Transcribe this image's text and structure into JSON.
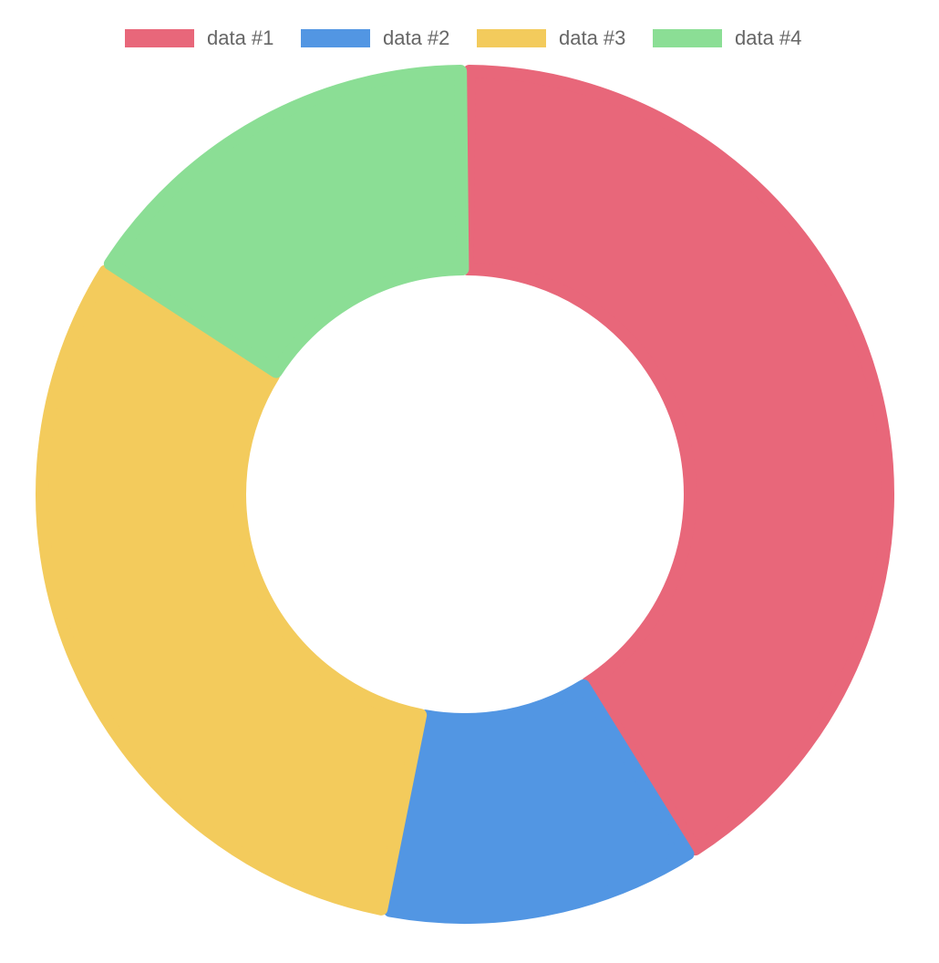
{
  "chart_data": {
    "type": "pie",
    "variant": "doughnut",
    "title": "",
    "legend_position": "top",
    "categories": [
      "data #1",
      "data #2",
      "data #3",
      "data #4"
    ],
    "values": [
      41,
      12,
      31,
      16
    ],
    "colors": [
      "#e8677a",
      "#5296e3",
      "#f3cb5c",
      "#8bde95"
    ]
  }
}
